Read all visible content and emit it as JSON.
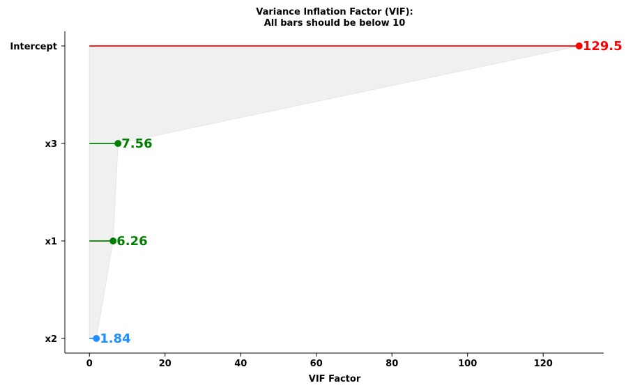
{
  "chart_data": {
    "type": "lollipop",
    "orientation": "horizontal",
    "title_line1": "Variance Inflation Factor (VIF):",
    "title_line2": "All bars should be below 10",
    "xlabel": "VIF Factor",
    "ylabel": "",
    "xlim": [
      -6.5,
      136
    ],
    "xticks": [
      0,
      20,
      40,
      60,
      80,
      100,
      120
    ],
    "xtick_labels": [
      "0",
      "20",
      "40",
      "60",
      "80",
      "100",
      "120"
    ],
    "categories": [
      "x2",
      "x1",
      "x3",
      "Intercept"
    ],
    "values": [
      1.84,
      6.26,
      7.56,
      129.5
    ],
    "value_labels": [
      "1.84",
      "6.26",
      "7.56",
      "129.5"
    ],
    "colors": [
      "#1e90ff",
      "#008000",
      "#008000",
      "#ff0000"
    ],
    "fill_color": "#f0f0f0",
    "grid": false,
    "legend": "none"
  }
}
